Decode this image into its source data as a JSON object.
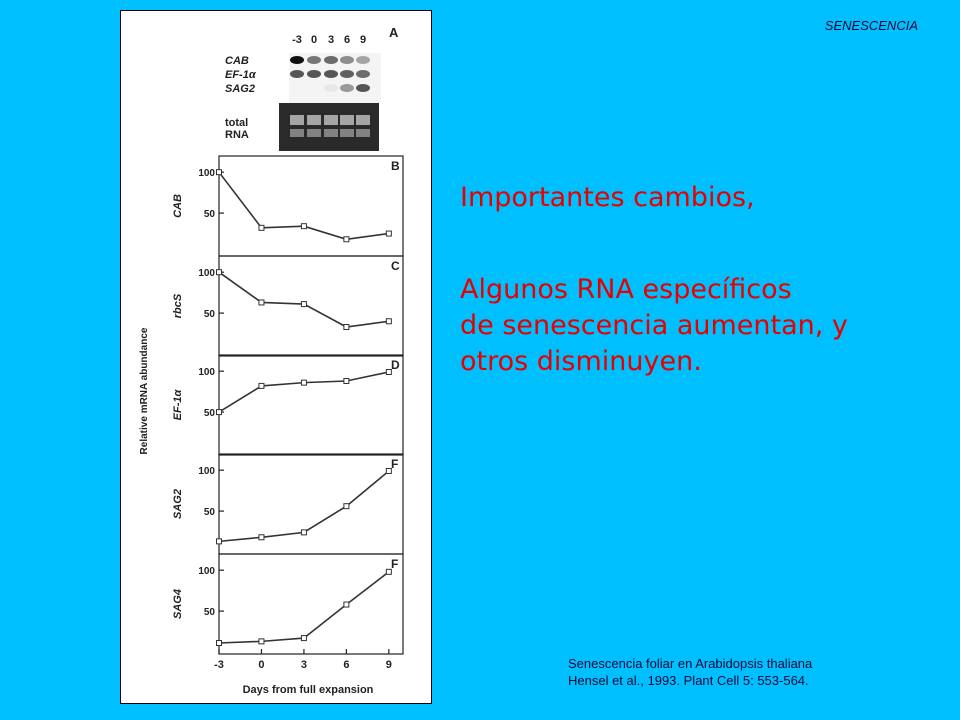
{
  "header": {
    "label": "SENESCENCIA"
  },
  "slide": {
    "title": "Importantes cambios,",
    "body_lines": [
      "Algunos RNA específicos",
      "de senescencia aumentan, y",
      "otros disminuyen."
    ]
  },
  "citation": {
    "line1": "Senescencia foliar en Arabidopsis thaliana",
    "line2": "Hensel et al., 1993. Plant Cell 5: 553-564."
  },
  "blot": {
    "panel_letter": "A",
    "lane_labels": [
      "-3",
      "0",
      "3",
      "6",
      "9"
    ],
    "row_labels": [
      "CAB",
      "EF-1α",
      "SAG2"
    ],
    "total_label": [
      "total",
      "RNA"
    ]
  },
  "chart_data": [
    {
      "type": "line",
      "panel": "B",
      "ylabel": "CAB",
      "x": [
        -3,
        0,
        3,
        6,
        9
      ],
      "values": [
        100,
        32,
        34,
        18,
        25
      ],
      "yticks": [
        50,
        100
      ],
      "ylim": [
        0,
        110
      ],
      "xlim": [
        -3,
        10
      ]
    },
    {
      "type": "line",
      "panel": "C",
      "ylabel": "rbcS",
      "x": [
        -3,
        0,
        3,
        6,
        9
      ],
      "values": [
        100,
        63,
        61,
        33,
        40
      ],
      "yticks": [
        50,
        100
      ],
      "ylim": [
        0,
        110
      ],
      "xlim": [
        -3,
        10
      ]
    },
    {
      "type": "line",
      "panel": "D",
      "ylabel": "EF-1α",
      "x": [
        -3,
        0,
        3,
        6,
        9
      ],
      "values": [
        50,
        82,
        86,
        88,
        99
      ],
      "yticks": [
        50,
        100
      ],
      "ylim": [
        0,
        110
      ],
      "xlim": [
        -3,
        10
      ]
    },
    {
      "type": "line",
      "panel": "F",
      "ylabel": "SAG2",
      "x": [
        -3,
        0,
        3,
        6,
        9
      ],
      "values": [
        13,
        18,
        24,
        56,
        99
      ],
      "yticks": [
        50,
        100
      ],
      "ylim": [
        0,
        110
      ],
      "xlim": [
        -3,
        10
      ]
    },
    {
      "type": "line",
      "panel": "F",
      "ylabel": "SAG4",
      "x": [
        -3,
        0,
        3,
        6,
        9
      ],
      "values": [
        11,
        13,
        17,
        58,
        98
      ],
      "yticks": [
        50,
        100
      ],
      "ylim": [
        0,
        110
      ],
      "xlim": [
        -3,
        10
      ]
    }
  ],
  "axes": {
    "x_ticks": [
      "-3",
      "0",
      "3",
      "6",
      "9"
    ],
    "xlabel": "Days from full expansion",
    "ylabel_shared": "Relative mRNA abundance"
  }
}
